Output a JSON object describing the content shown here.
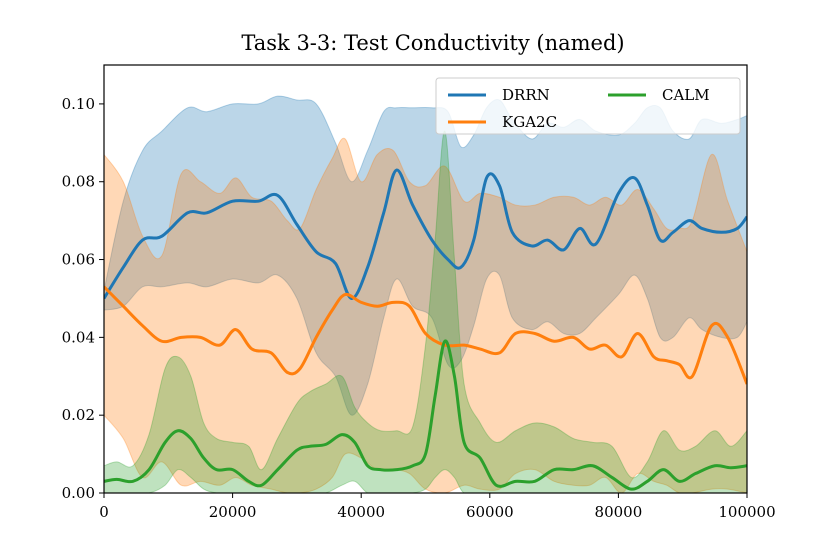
{
  "chart_data": {
    "type": "line",
    "title": "Task 3-3: Test Conductivity (named)",
    "xlabel": "",
    "ylabel": "",
    "xlim": [
      0,
      100000
    ],
    "ylim": [
      0,
      0.11
    ],
    "xticks": [
      0,
      20000,
      40000,
      60000,
      80000,
      100000
    ],
    "xtick_labels": [
      "0",
      "20000",
      "40000",
      "60000",
      "80000",
      "100000"
    ],
    "yticks": [
      0.0,
      0.02,
      0.04,
      0.06,
      0.08,
      0.1
    ],
    "ytick_labels": [
      "0.00",
      "0.02",
      "0.04",
      "0.06",
      "0.08",
      "0.10"
    ],
    "grid": false,
    "legend_position": "top-right",
    "series": [
      {
        "name": "DRRN",
        "color": "#1f77b4",
        "x": [
          0,
          3000,
          6000,
          9000,
          13000,
          16000,
          20000,
          24000,
          27000,
          30000,
          33000,
          36000,
          38500,
          41000,
          43500,
          45500,
          48000,
          51000,
          53500,
          55500,
          57500,
          59500,
          61500,
          63500,
          66500,
          69000,
          71500,
          74000,
          76500,
          80000,
          82500,
          84500,
          86500,
          88500,
          91000,
          93000,
          96000,
          98500,
          100000
        ],
        "y": [
          0.05,
          0.058,
          0.065,
          0.066,
          0.072,
          0.072,
          0.075,
          0.075,
          0.0765,
          0.069,
          0.062,
          0.059,
          0.05,
          0.058,
          0.072,
          0.083,
          0.074,
          0.065,
          0.06,
          0.058,
          0.065,
          0.081,
          0.079,
          0.067,
          0.0635,
          0.065,
          0.0625,
          0.068,
          0.064,
          0.077,
          0.081,
          0.074,
          0.065,
          0.067,
          0.07,
          0.068,
          0.067,
          0.068,
          0.071
        ],
        "upper": [
          0.052,
          0.075,
          0.088,
          0.093,
          0.099,
          0.098,
          0.1,
          0.1,
          0.102,
          0.101,
          0.1,
          0.09,
          0.08,
          0.088,
          0.098,
          0.099,
          0.099,
          0.099,
          0.098,
          0.089,
          0.092,
          0.099,
          0.101,
          0.096,
          0.091,
          0.095,
          0.094,
          0.096,
          0.093,
          0.092,
          0.095,
          0.099,
          0.099,
          0.093,
          0.091,
          0.096,
          0.095,
          0.096,
          0.097
        ],
        "lower": [
          0.047,
          0.048,
          0.053,
          0.053,
          0.054,
          0.053,
          0.055,
          0.054,
          0.056,
          0.05,
          0.036,
          0.03,
          0.02,
          0.028,
          0.045,
          0.055,
          0.048,
          0.045,
          0.033,
          0.034,
          0.043,
          0.055,
          0.056,
          0.045,
          0.042,
          0.044,
          0.041,
          0.041,
          0.045,
          0.051,
          0.056,
          0.05,
          0.04,
          0.04,
          0.045,
          0.042,
          0.04,
          0.04,
          0.044
        ]
      },
      {
        "name": "KGA2C",
        "color": "#ff7f0e",
        "x": [
          0,
          3000,
          6000,
          9000,
          12000,
          15000,
          18000,
          20500,
          23000,
          26000,
          28500,
          30500,
          33000,
          35500,
          37500,
          40000,
          42500,
          45000,
          47500,
          50000,
          53000,
          56000,
          58500,
          61500,
          64000,
          67000,
          70000,
          73000,
          75500,
          78000,
          80500,
          83000,
          85500,
          87500,
          89500,
          91500,
          94500,
          97000,
          100000
        ],
        "y": [
          0.053,
          0.048,
          0.043,
          0.039,
          0.04,
          0.04,
          0.038,
          0.042,
          0.037,
          0.036,
          0.031,
          0.032,
          0.04,
          0.047,
          0.051,
          0.049,
          0.048,
          0.049,
          0.048,
          0.041,
          0.038,
          0.038,
          0.037,
          0.036,
          0.041,
          0.041,
          0.039,
          0.04,
          0.037,
          0.038,
          0.035,
          0.041,
          0.035,
          0.034,
          0.033,
          0.03,
          0.043,
          0.04,
          0.028
        ],
        "upper": [
          0.087,
          0.08,
          0.066,
          0.061,
          0.082,
          0.08,
          0.077,
          0.081,
          0.076,
          0.075,
          0.07,
          0.068,
          0.078,
          0.086,
          0.091,
          0.08,
          0.087,
          0.088,
          0.08,
          0.079,
          0.084,
          0.075,
          0.077,
          0.076,
          0.074,
          0.074,
          0.076,
          0.076,
          0.074,
          0.076,
          0.074,
          0.078,
          0.073,
          0.068,
          0.068,
          0.07,
          0.087,
          0.075,
          0.062
        ],
        "lower": [
          0.02,
          0.014,
          0.004,
          0.008,
          0.002,
          0.003,
          0.002,
          0.004,
          0.002,
          0.001,
          0.0,
          0.0,
          0.001,
          0.004,
          0.01,
          0.009,
          0.006,
          0.006,
          0.005,
          0.001,
          0.0,
          0.002,
          0.001,
          0.001,
          0.005,
          0.006,
          0.003,
          0.002,
          0.002,
          0.004,
          0.0,
          0.005,
          0.003,
          0.002,
          0.0,
          0.0,
          0.001,
          0.001,
          0.0
        ]
      },
      {
        "name": "CALM",
        "color": "#2ca02c",
        "x": [
          0,
          2000,
          4500,
          7000,
          9500,
          11500,
          13500,
          15500,
          17500,
          20000,
          22500,
          24500,
          27000,
          30000,
          32000,
          34500,
          37000,
          39000,
          41000,
          43000,
          45500,
          48000,
          50000,
          51500,
          53000,
          54500,
          56000,
          58500,
          61000,
          64000,
          67000,
          70000,
          73000,
          76000,
          79000,
          82000,
          84500,
          87000,
          89500,
          92000,
          95000,
          97500,
          100000
        ],
        "y": [
          0.003,
          0.0035,
          0.003,
          0.006,
          0.013,
          0.016,
          0.014,
          0.009,
          0.006,
          0.006,
          0.003,
          0.002,
          0.006,
          0.011,
          0.012,
          0.0125,
          0.015,
          0.013,
          0.007,
          0.006,
          0.006,
          0.007,
          0.01,
          0.025,
          0.039,
          0.03,
          0.013,
          0.009,
          0.002,
          0.003,
          0.003,
          0.006,
          0.006,
          0.007,
          0.004,
          0.001,
          0.003,
          0.006,
          0.003,
          0.005,
          0.007,
          0.0065,
          0.007
        ],
        "upper": [
          0.007,
          0.008,
          0.007,
          0.015,
          0.032,
          0.035,
          0.03,
          0.018,
          0.014,
          0.013,
          0.012,
          0.006,
          0.014,
          0.023,
          0.026,
          0.028,
          0.03,
          0.022,
          0.018,
          0.016,
          0.016,
          0.017,
          0.038,
          0.065,
          0.093,
          0.06,
          0.028,
          0.018,
          0.013,
          0.016,
          0.018,
          0.017,
          0.014,
          0.013,
          0.012,
          0.004,
          0.008,
          0.016,
          0.011,
          0.012,
          0.016,
          0.012,
          0.016
        ],
        "lower": [
          0.0,
          0.0,
          0.0,
          0.0,
          0.002,
          0.006,
          0.004,
          0.001,
          0.0,
          0.0,
          0.0,
          0.0,
          0.0,
          0.0,
          0.0,
          0.0,
          0.002,
          0.003,
          0.0,
          0.0,
          0.0,
          0.0,
          0.001,
          0.004,
          0.006,
          0.004,
          0.0,
          0.0,
          0.0,
          0.0,
          0.0,
          0.0,
          0.0,
          0.0,
          0.0,
          0.0,
          0.0,
          0.0,
          0.0,
          0.0,
          0.0,
          0.0,
          0.0
        ]
      }
    ]
  }
}
